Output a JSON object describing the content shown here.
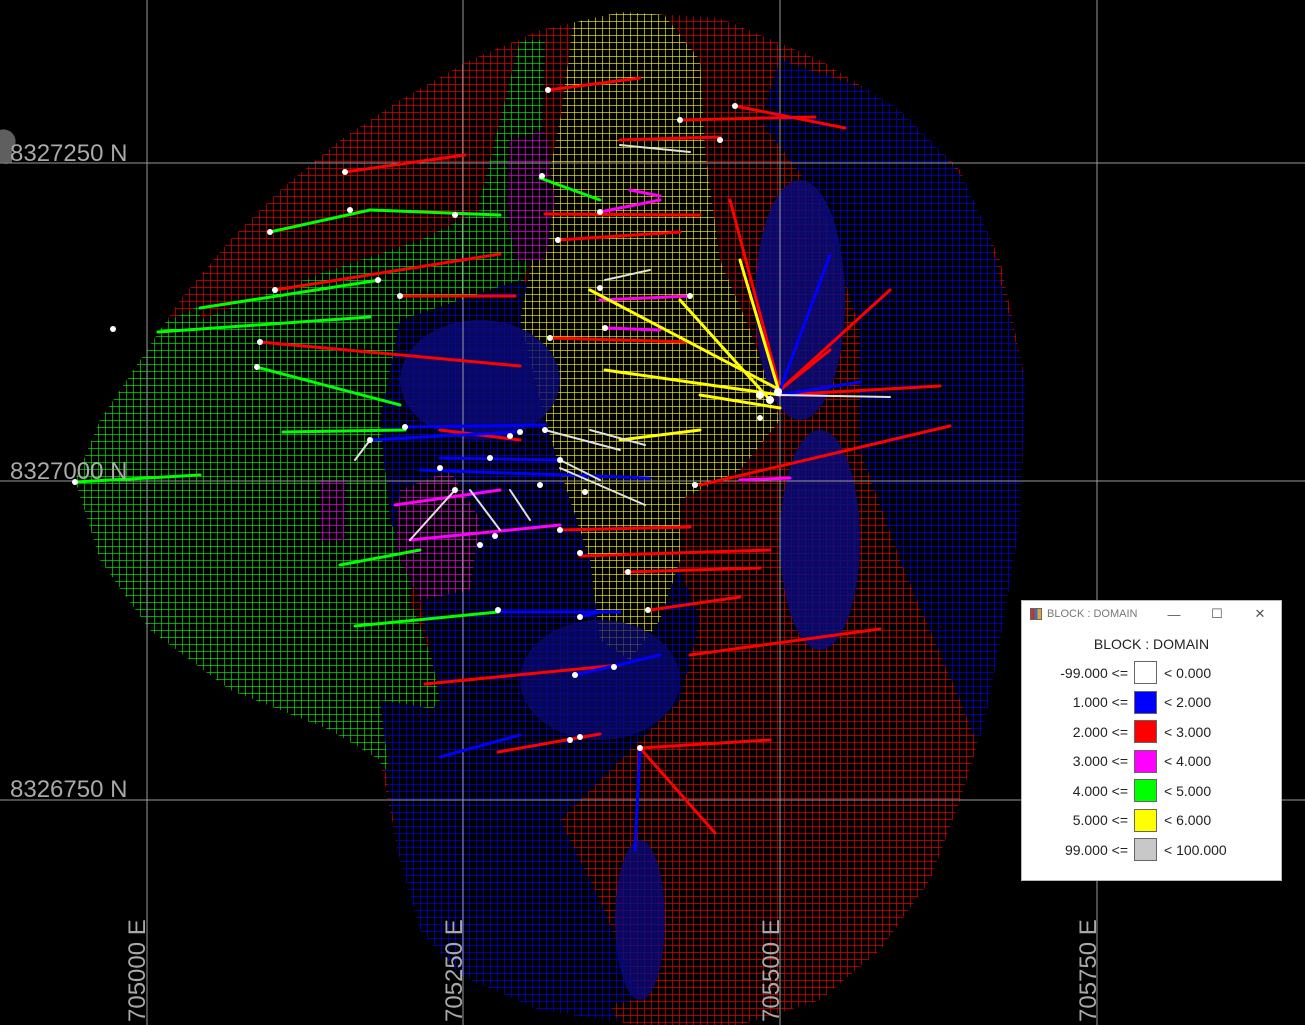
{
  "viewport": {
    "background": "#000000",
    "grid_color": "#9a9a9a",
    "northing_labels": [
      "8327250 N",
      "8327000 N",
      "8326750 N"
    ],
    "easting_labels": [
      "705000 E",
      "705250 E",
      "705500 E",
      "705750 E"
    ]
  },
  "model_colors": {
    "domain_1": "#0000ff",
    "domain_2": "#ff0000",
    "domain_3": "#ff00ff",
    "domain_4": "#00ff00",
    "domain_5": "#ffff00",
    "domain_99": "#c8c8c8",
    "drillhole_collar": "#ffffff"
  },
  "legend": {
    "window_title": "BLOCK : DOMAIN",
    "heading": "BLOCK : DOMAIN",
    "minimize_icon": "minimize-icon",
    "maximize_icon": "maximize-icon",
    "close_icon": "close-icon",
    "rows": [
      {
        "lo": "-99.000 <=",
        "hi": "< 0.000",
        "color": "#ffffff"
      },
      {
        "lo": "1.000 <=",
        "hi": "< 2.000",
        "color": "#0000ff"
      },
      {
        "lo": "2.000 <=",
        "hi": "< 3.000",
        "color": "#ff0000"
      },
      {
        "lo": "3.000 <=",
        "hi": "< 4.000",
        "color": "#ff00ff"
      },
      {
        "lo": "4.000 <=",
        "hi": "< 5.000",
        "color": "#00ff00"
      },
      {
        "lo": "5.000 <=",
        "hi": "< 6.000",
        "color": "#ffff00"
      },
      {
        "lo": "99.000 <=",
        "hi": "< 100.000",
        "color": "#c8c8c8"
      }
    ]
  }
}
